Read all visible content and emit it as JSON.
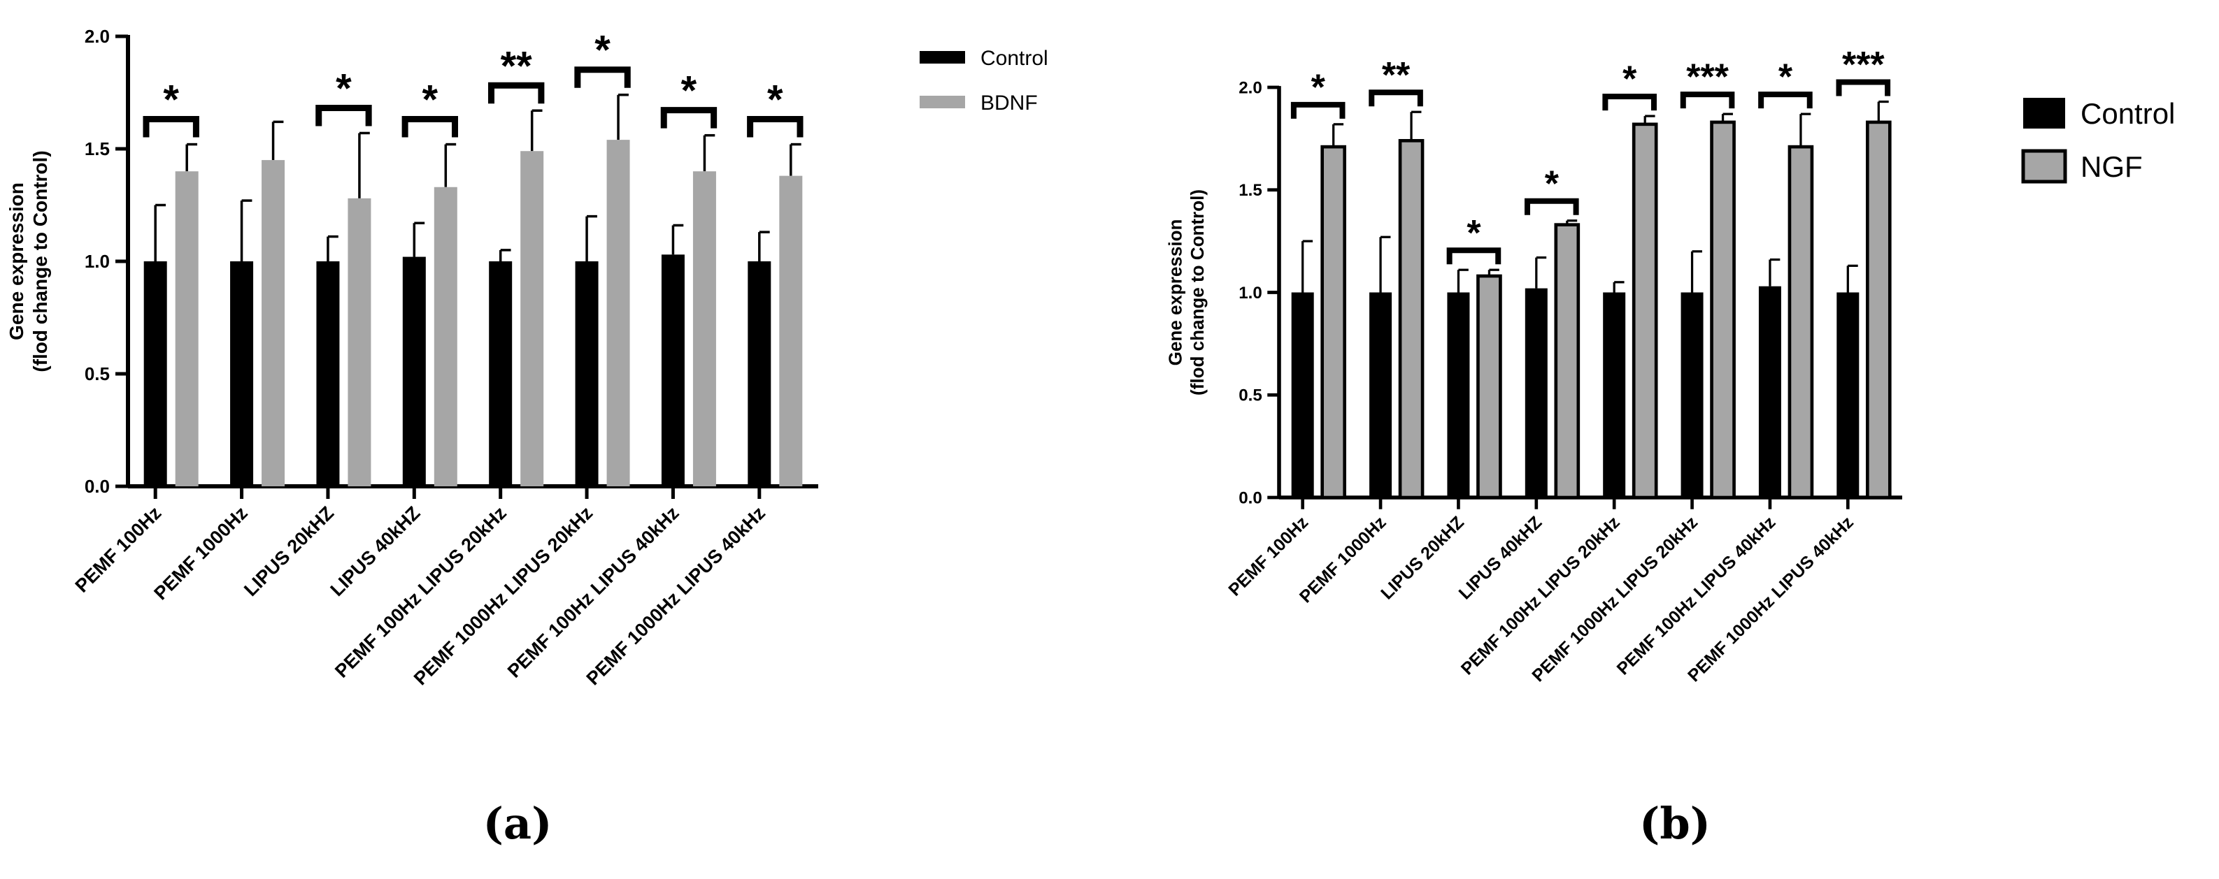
{
  "chart_data": [
    {
      "type": "bar",
      "panel": "(a)",
      "ylabel": [
        "Gene expression",
        "(flod change to Control)"
      ],
      "xlabel": "",
      "ylim": [
        0,
        2.0
      ],
      "yticks": [
        "0.0",
        "0.5",
        "1.0",
        "1.5",
        "2.0"
      ],
      "ytick_values": [
        0,
        0.5,
        1.0,
        1.5,
        2.0
      ],
      "categories": [
        "PEMF 100Hz",
        "PEMF 1000Hz",
        "LIPUS 20kHZ",
        "LIPUS 40kHZ",
        "PEMF 100Hz LIPUS 20kHz",
        "PEMF 1000Hz LIPUS 20kHz",
        "PEMF 100Hz LIPUS 40kHz",
        "PEMF 1000Hz LIPUS 40kHz"
      ],
      "series": [
        {
          "name": "Control",
          "color": "#000000",
          "values": [
            1.0,
            1.0,
            1.0,
            1.02,
            1.0,
            1.0,
            1.03,
            1.0
          ],
          "errors": [
            0.25,
            0.27,
            0.11,
            0.15,
            0.05,
            0.2,
            0.13,
            0.13
          ]
        },
        {
          "name": "BDNF",
          "color": "#a6a6a6",
          "values": [
            1.4,
            1.45,
            1.28,
            1.33,
            1.49,
            1.54,
            1.4,
            1.38
          ],
          "errors": [
            0.12,
            0.17,
            0.29,
            0.19,
            0.18,
            0.2,
            0.16,
            0.14
          ]
        }
      ],
      "significance": [
        "*",
        "",
        "*",
        "*",
        "**",
        "*",
        "*",
        "*"
      ],
      "legend": [
        "Control",
        "BDNF"
      ],
      "legend_position": "top-right"
    },
    {
      "type": "bar",
      "panel": "(b)",
      "ylabel": [
        "Gene expression",
        "(flod change to Control)"
      ],
      "xlabel": "",
      "ylim": [
        0,
        2.0
      ],
      "yticks": [
        "0.0",
        "0.5",
        "1.0",
        "1.5",
        "2.0"
      ],
      "ytick_values": [
        0,
        0.5,
        1.0,
        1.5,
        2.0
      ],
      "categories": [
        "PEMF 100Hz",
        "PEMF 1000Hz",
        "LIPUS 20kHZ",
        "LIPUS 40kHZ",
        "PEMF 100Hz LIPUS 20kHz",
        "PEMF 1000Hz LIPUS 20kHz",
        "PEMF 100Hz LIPUS 40kHz",
        "PEMF 1000Hz LIPUS 40kHz"
      ],
      "series": [
        {
          "name": "Control",
          "color": "#000000",
          "values": [
            1.0,
            1.0,
            1.0,
            1.02,
            1.0,
            1.0,
            1.03,
            1.0
          ],
          "errors": [
            0.25,
            0.27,
            0.11,
            0.15,
            0.05,
            0.2,
            0.13,
            0.13
          ]
        },
        {
          "name": "NGF",
          "color": "#a6a6a6",
          "values": [
            1.71,
            1.74,
            1.08,
            1.33,
            1.82,
            1.83,
            1.71,
            1.83
          ],
          "errors": [
            0.11,
            0.14,
            0.03,
            0.02,
            0.04,
            0.04,
            0.16,
            0.1
          ]
        }
      ],
      "significance": [
        "*",
        "**",
        "*",
        "*",
        "*",
        "***",
        "*",
        "***"
      ],
      "legend": [
        "Control",
        "NGF"
      ],
      "legend_position": "top-right"
    }
  ]
}
